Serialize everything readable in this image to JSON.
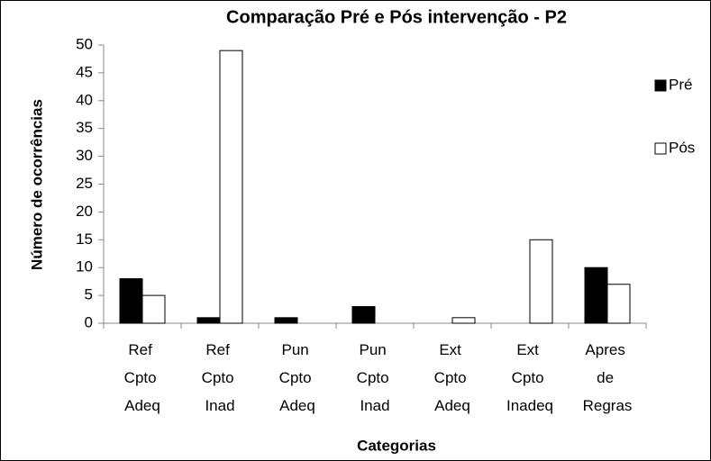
{
  "chart_data": {
    "type": "bar",
    "title": "Comparação Pré e Pós intervenção - P2",
    "y_label": "Número de ocorrências",
    "x_label": "Categorias",
    "categories": [
      "Ref Cpto Adeq",
      "Ref Cpto Inad",
      "Pun Cpto Adeq",
      "Pun Cpto Inad",
      "Ext Cpto Adeq",
      "Ext Cpto Inadeq",
      "Apres de Regras"
    ],
    "series": [
      {
        "name": "Pré",
        "color": "#000000",
        "values": [
          8,
          1,
          1,
          3,
          0,
          0,
          10
        ]
      },
      {
        "name": "Pós",
        "color": "#ffffff",
        "values": [
          5,
          49,
          0,
          0,
          1,
          15,
          7
        ]
      }
    ],
    "ylim": [
      0,
      50
    ],
    "yticks": [
      0,
      5,
      10,
      15,
      20,
      25,
      30,
      35,
      40,
      45,
      50
    ],
    "grid": false,
    "legend": "right"
  }
}
